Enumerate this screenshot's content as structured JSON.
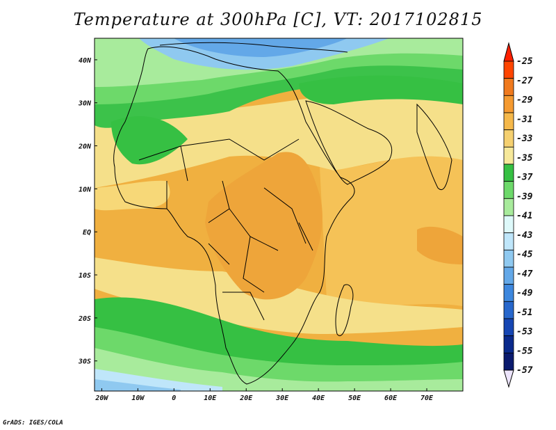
{
  "title": "Temperature at 300hPa [C], VT: 2017102815",
  "credit": "GrADS: IGES/COLA",
  "map": {
    "x_ticks": [
      "20W",
      "10W",
      "0",
      "10E",
      "20E",
      "30E",
      "40E",
      "50E",
      "60E",
      "70E"
    ],
    "y_ticks": [
      "40N",
      "30N",
      "20N",
      "10N",
      "EQ",
      "10S",
      "20S",
      "30S"
    ],
    "lon_values": [
      -20,
      -10,
      0,
      10,
      20,
      30,
      40,
      50,
      60,
      70
    ],
    "lat_values": [
      40,
      30,
      20,
      10,
      0,
      -10,
      -20,
      -30
    ],
    "lon_range": [
      -22,
      80
    ],
    "lat_range": [
      -37,
      45
    ],
    "field_regions": [
      {
        "name": "north-pole-cold-band",
        "color": "#5aa0e6"
      },
      {
        "name": "north-green-band",
        "color": "#3cc24a"
      },
      {
        "name": "sahara-yellow",
        "color": "#f5e08a"
      },
      {
        "name": "tropical-orange",
        "color": "#f0b040"
      },
      {
        "name": "southern-green-band",
        "color": "#3cc24a"
      },
      {
        "name": "southern-ocean-cold",
        "color": "#a8d0f5"
      }
    ]
  },
  "colorbar": {
    "labels": [
      "-25",
      "-27",
      "-29",
      "-31",
      "-33",
      "-35",
      "-37",
      "-39",
      "-41",
      "-43",
      "-45",
      "-47",
      "-49",
      "-51",
      "-53",
      "-55",
      "-57"
    ],
    "colors": [
      "#ff4500",
      "#f07a1e",
      "#f59a30",
      "#f5b84a",
      "#f5d070",
      "#f6e89a",
      "#36c043",
      "#6dd96a",
      "#a8eb9c",
      "#def9fa",
      "#bfe6fa",
      "#8fc9f0",
      "#63a8e8",
      "#3d87de",
      "#2767cc",
      "#1646b3",
      "#0a2a8c",
      "#0a1a6e"
    ],
    "top_arrow_color": "#ff2000",
    "bottom_arrow_color": "#ece4fb"
  }
}
